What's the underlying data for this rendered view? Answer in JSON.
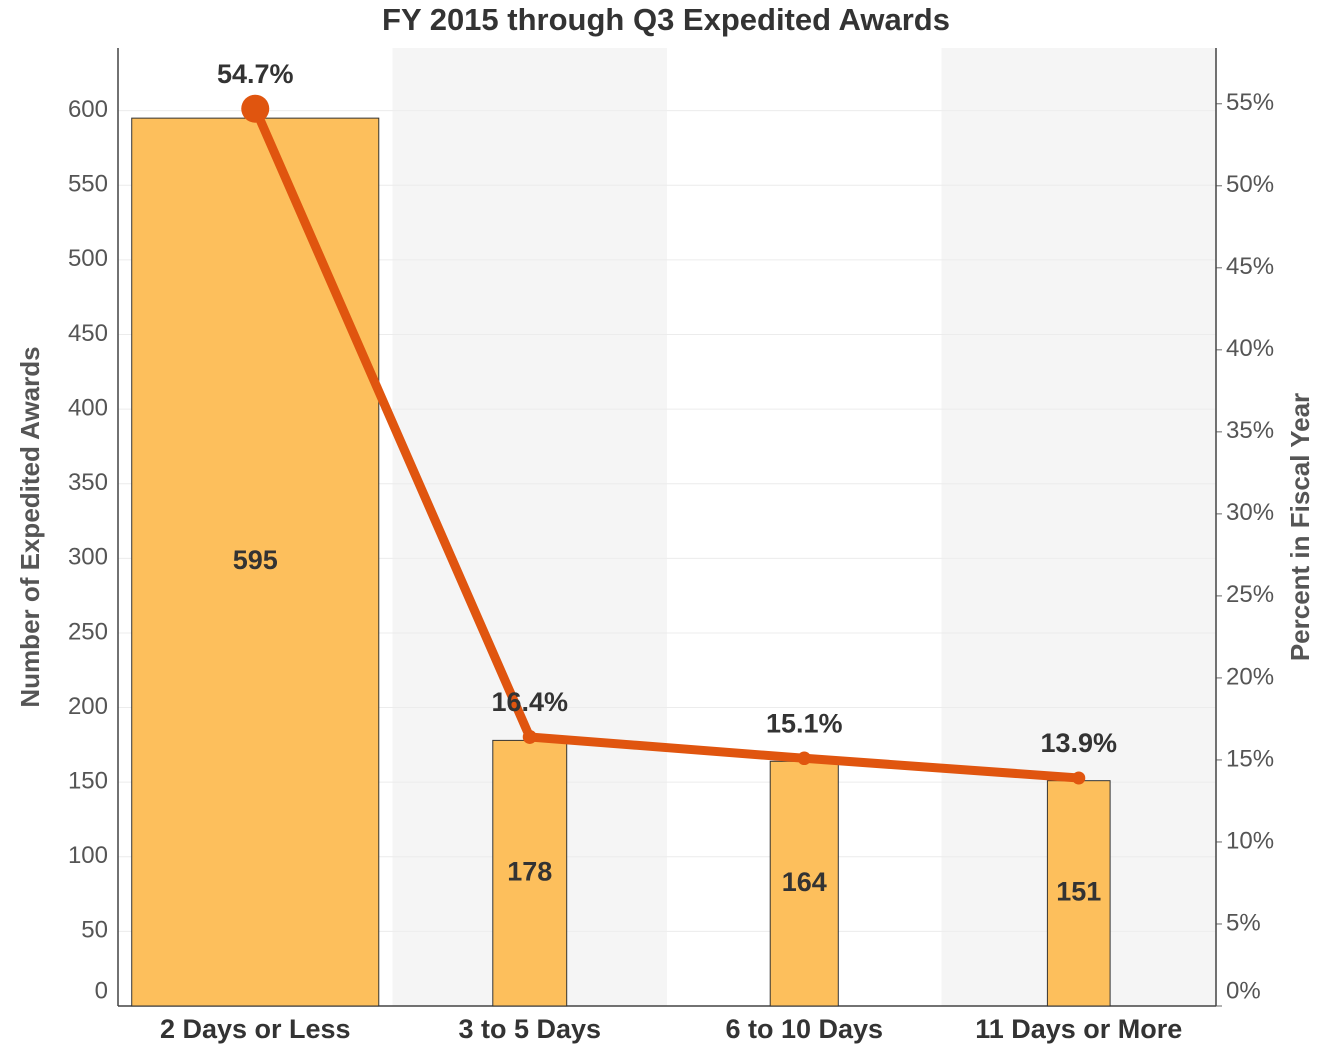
{
  "chart_data": {
    "type": "bar",
    "title": "FY 2015 through Q3 Expedited Awards",
    "y_label": "Number of Expedited Awards",
    "y2_label": "Percent in Fiscal Year",
    "categories": [
      "2 Days or Less",
      "3 to 5 Days",
      "6 to 10 Days",
      "11 Days or More"
    ],
    "series": [
      {
        "type": "bar",
        "color": "#fdbf5c",
        "values": [
          595,
          178,
          164,
          151
        ]
      },
      {
        "type": "line",
        "axis": "y2",
        "color": "#e0550f",
        "values": [
          54.7,
          16.4,
          15.1,
          13.9
        ],
        "value_labels": [
          "54.7%",
          "16.4%",
          "15.1%",
          "13.9%"
        ]
      }
    ],
    "ylim": [
      0,
      642
    ],
    "yticks": [
      0,
      50,
      100,
      150,
      200,
      250,
      300,
      350,
      400,
      450,
      500,
      550,
      600
    ],
    "y2lim": [
      0,
      58.4
    ],
    "y2ticks": [
      {
        "value": 0,
        "label": "0%"
      },
      {
        "value": 5,
        "label": "5%"
      },
      {
        "value": 10,
        "label": "10%"
      },
      {
        "value": 15,
        "label": "15%"
      },
      {
        "value": 20,
        "label": "20%"
      },
      {
        "value": 25,
        "label": "25%"
      },
      {
        "value": 30,
        "label": "30%"
      },
      {
        "value": 35,
        "label": "35%"
      },
      {
        "value": 40,
        "label": "40%"
      },
      {
        "value": 45,
        "label": "45%"
      },
      {
        "value": 50,
        "label": "50%"
      },
      {
        "value": 55,
        "label": "55%"
      }
    ],
    "grid": true
  }
}
